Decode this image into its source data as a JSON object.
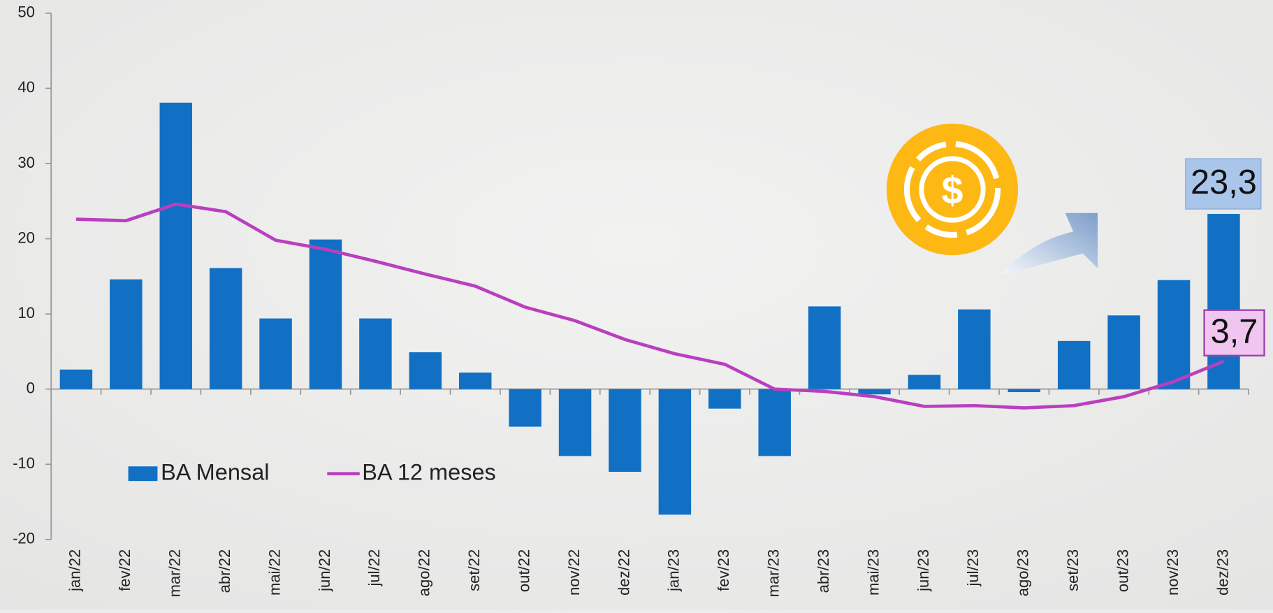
{
  "chart_data": {
    "type": "bar-line",
    "categories": [
      "jan/22",
      "fev/22",
      "mar/22",
      "abr/22",
      "mai/22",
      "jun/22",
      "jul/22",
      "ago/22",
      "set/22",
      "out/22",
      "nov/22",
      "dez/22",
      "jan/23",
      "fev/23",
      "mar/23",
      "abr/23",
      "mai/23",
      "jun/23",
      "jul/23",
      "ago/23",
      "set/23",
      "out/23",
      "nov/23",
      "dez/23"
    ],
    "series": [
      {
        "name": "BA Mensal",
        "type": "bar",
        "color": "#1170c4",
        "values": [
          2.6,
          14.6,
          38.1,
          16.1,
          9.4,
          19.9,
          9.4,
          4.9,
          2.2,
          -5.0,
          -8.9,
          -11.0,
          -16.7,
          -2.6,
          -8.9,
          11.0,
          -0.7,
          1.9,
          10.6,
          -0.4,
          6.4,
          9.8,
          14.5,
          23.3
        ],
        "value_labels": [
          null,
          null,
          null,
          null,
          null,
          null,
          null,
          null,
          null,
          null,
          null,
          null,
          null,
          null,
          null,
          null,
          null,
          null,
          null,
          null,
          null,
          null,
          null,
          "23,3"
        ]
      },
      {
        "name": "BA 12 meses",
        "type": "line",
        "color": "#b93fbf",
        "values": [
          22.6,
          22.4,
          24.6,
          23.6,
          19.8,
          18.6,
          17.0,
          15.3,
          13.7,
          10.9,
          9.1,
          6.6,
          4.7,
          3.3,
          0.0,
          -0.3,
          -1.0,
          -2.3,
          -2.2,
          -2.5,
          -2.2,
          -1.0,
          1.0,
          3.7
        ],
        "value_labels": [
          null,
          null,
          null,
          null,
          null,
          null,
          null,
          null,
          null,
          null,
          null,
          null,
          null,
          null,
          null,
          null,
          null,
          null,
          null,
          null,
          null,
          null,
          null,
          "3,7"
        ]
      }
    ],
    "ylim": [
      -20,
      50
    ],
    "yticks": [
      -20,
      -10,
      0,
      10,
      20,
      30,
      40,
      50
    ],
    "grid": false,
    "legend": "lower-left"
  }
}
